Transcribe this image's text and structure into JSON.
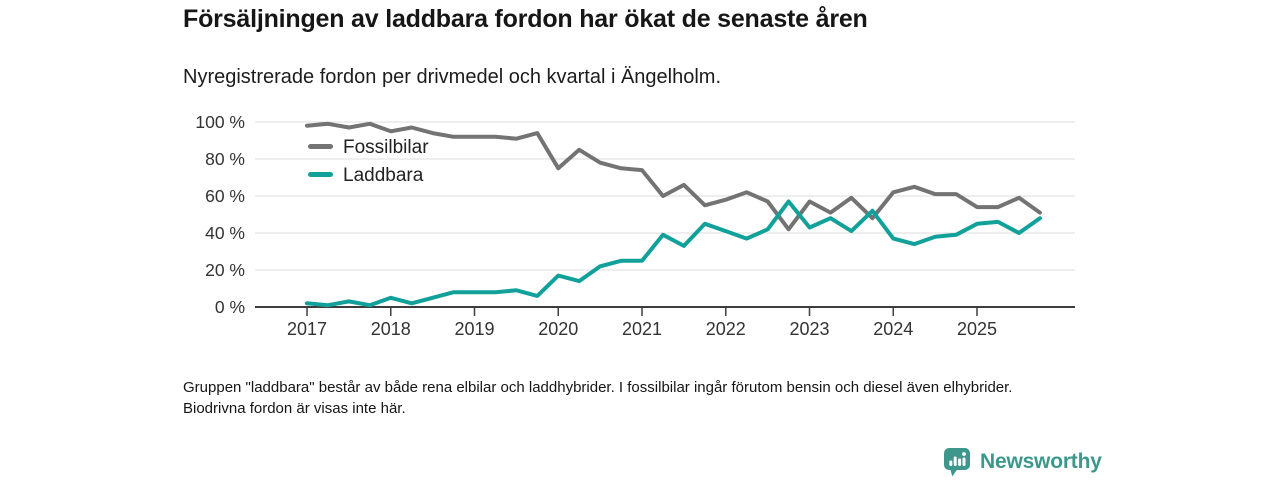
{
  "header": {
    "title": "Försäljningen av laddbara fordon har ökat de senaste åren",
    "subtitle": "Nyregistrerade fordon per drivmedel och kvartal i Ängelholm."
  },
  "chart_data": {
    "type": "line",
    "title": "Försäljningen av laddbara fordon har ökat de senaste åren",
    "subtitle": "Nyregistrerade fordon per drivmedel och kvartal i Ängelholm.",
    "categories": [
      "2017 Q1",
      "2017 Q2",
      "2017 Q3",
      "2017 Q4",
      "2018 Q1",
      "2018 Q2",
      "2018 Q3",
      "2018 Q4",
      "2019 Q1",
      "2019 Q2",
      "2019 Q3",
      "2019 Q4",
      "2020 Q1",
      "2020 Q2",
      "2020 Q3",
      "2020 Q4",
      "2021 Q1",
      "2021 Q2",
      "2021 Q3",
      "2021 Q4",
      "2022 Q1",
      "2022 Q2",
      "2022 Q3",
      "2022 Q4",
      "2023 Q1",
      "2023 Q2",
      "2023 Q3",
      "2023 Q4",
      "2024 Q1",
      "2024 Q2",
      "2024 Q3",
      "2024 Q4",
      "2025 Q1",
      "2025 Q2",
      "2025 Q3",
      "2025 Q4"
    ],
    "series": [
      {
        "name": "Fossilbilar",
        "color": "#737373",
        "values": [
          98,
          99,
          97,
          99,
          95,
          97,
          94,
          92,
          92,
          92,
          91,
          94,
          75,
          85,
          78,
          75,
          74,
          60,
          66,
          55,
          58,
          62,
          57,
          42,
          57,
          51,
          59,
          48,
          62,
          65,
          61,
          61,
          54,
          54,
          59,
          51
        ]
      },
      {
        "name": "Laddbara",
        "color": "#12a19a",
        "values": [
          2,
          1,
          3,
          1,
          5,
          2,
          5,
          8,
          8,
          8,
          9,
          6,
          17,
          14,
          22,
          25,
          25,
          39,
          33,
          45,
          41,
          37,
          42,
          57,
          43,
          48,
          41,
          52,
          37,
          34,
          38,
          39,
          45,
          46,
          40,
          48
        ]
      }
    ],
    "x_tick_labels": [
      "2017",
      "2018",
      "2019",
      "2020",
      "2021",
      "2022",
      "2023",
      "2024",
      "2025"
    ],
    "y_tick_labels": [
      "0 %",
      "20 %",
      "40 %",
      "60 %",
      "80 %",
      "100 %"
    ],
    "ylim": [
      0,
      100
    ],
    "grid": true,
    "legend_position": "inside-top-left",
    "grid_color": "#dcdcdc",
    "axis_color": "#3d3d3d",
    "tick_label_color": "#333333",
    "legend_text_color": "#222222"
  },
  "footnote": {
    "text": "Gruppen \"laddbara\" består av både rena elbilar och laddhybrider. I fossilbilar ingår förutom bensin och diesel även elhybrider. Biodrivna fordon är visas inte här."
  },
  "logo": {
    "text": "Newsworthy",
    "icon": "bar-chart-speech-bubble-icon",
    "color": "#3d978c"
  }
}
